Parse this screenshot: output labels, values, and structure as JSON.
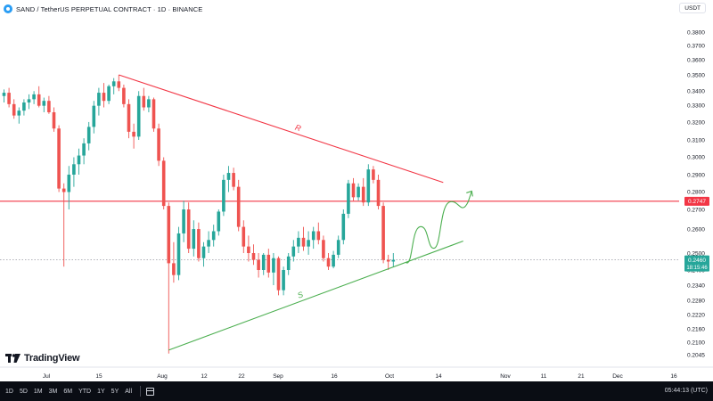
{
  "header": {
    "symbol_title": "SAND / TetherUS PERPETUAL CONTRACT · 1D · BINANCE",
    "currency": "USDT"
  },
  "price_badges": {
    "resistance_level": "0.2747",
    "current_price": "0.2460",
    "countdown": "18:15:46"
  },
  "colors": {
    "up": "#26a69a",
    "down": "#ef5350",
    "resistance": "#f23645",
    "support": "#4caf50",
    "wave": "#4caf50",
    "current_price": "#26a69a"
  },
  "annotations": {
    "resistance_label": "R",
    "support_label": "S"
  },
  "logo": {
    "text": "TradingView"
  },
  "bottom_bar": {
    "timeframes": [
      "1D",
      "5D",
      "1M",
      "3M",
      "6M",
      "YTD",
      "1Y",
      "5Y",
      "All"
    ],
    "clock": "05:44:13 (UTC)"
  },
  "chart_data": {
    "type": "candlestick",
    "title": "SAND / TetherUS PERPETUAL CONTRACT · 1D · BINANCE",
    "timeframe": "1D",
    "ylim": [
      0.2,
      0.39
    ],
    "y_ticks": [
      "0.3800",
      "0.3700",
      "0.3600",
      "0.3500",
      "0.3400",
      "0.3300",
      "0.3200",
      "0.3100",
      "0.3000",
      "0.2900",
      "0.2800",
      "0.2700",
      "0.2600",
      "0.2500",
      "0.2400",
      "0.2340",
      "0.2280",
      "0.2220",
      "0.2160",
      "0.2100",
      "0.2045"
    ],
    "x_ticks": [
      "Jul",
      "15",
      "Aug",
      "12",
      "22",
      "Sep",
      "16",
      "Oct",
      "14",
      "Nov",
      "11",
      "21",
      "Dec",
      "16"
    ],
    "horizontal_lines": [
      {
        "name": "resistance-level",
        "price": 0.2747
      },
      {
        "name": "current-price",
        "price": 0.246
      }
    ],
    "trendlines": [
      {
        "name": "R",
        "from_bar": 23,
        "from_price": 0.35,
        "to_bar": 88,
        "to_price": 0.2855
      },
      {
        "name": "S",
        "from_bar": 33,
        "from_price": 0.2065,
        "to_bar": 92,
        "to_price": 0.2555
      }
    ],
    "candles": [
      [
        0.337,
        0.341,
        0.333,
        0.339
      ],
      [
        0.339,
        0.342,
        0.33,
        0.332
      ],
      [
        0.332,
        0.335,
        0.323,
        0.325
      ],
      [
        0.325,
        0.33,
        0.32,
        0.328
      ],
      [
        0.328,
        0.335,
        0.325,
        0.333
      ],
      [
        0.333,
        0.338,
        0.329,
        0.335
      ],
      [
        0.335,
        0.34,
        0.332,
        0.338
      ],
      [
        0.338,
        0.343,
        0.33,
        0.331
      ],
      [
        0.331,
        0.336,
        0.327,
        0.334
      ],
      [
        0.334,
        0.337,
        0.326,
        0.327
      ],
      [
        0.327,
        0.33,
        0.315,
        0.317
      ],
      [
        0.317,
        0.319,
        0.28,
        0.282
      ],
      [
        0.282,
        0.285,
        0.242,
        0.28
      ],
      [
        0.28,
        0.295,
        0.27,
        0.29
      ],
      [
        0.29,
        0.3,
        0.283,
        0.296
      ],
      [
        0.296,
        0.305,
        0.29,
        0.301
      ],
      [
        0.301,
        0.311,
        0.296,
        0.308
      ],
      [
        0.308,
        0.321,
        0.304,
        0.318
      ],
      [
        0.318,
        0.334,
        0.314,
        0.331
      ],
      [
        0.331,
        0.342,
        0.325,
        0.339
      ],
      [
        0.339,
        0.345,
        0.33,
        0.334
      ],
      [
        0.334,
        0.344,
        0.332,
        0.343
      ],
      [
        0.343,
        0.348,
        0.338,
        0.346
      ],
      [
        0.346,
        0.35,
        0.34,
        0.342
      ],
      [
        0.342,
        0.344,
        0.33,
        0.332
      ],
      [
        0.332,
        0.335,
        0.311,
        0.315
      ],
      [
        0.315,
        0.32,
        0.305,
        0.312
      ],
      [
        0.312,
        0.34,
        0.31,
        0.337
      ],
      [
        0.337,
        0.342,
        0.328,
        0.33
      ],
      [
        0.33,
        0.337,
        0.327,
        0.335
      ],
      [
        0.335,
        0.336,
        0.315,
        0.317
      ],
      [
        0.317,
        0.32,
        0.295,
        0.298
      ],
      [
        0.298,
        0.3,
        0.27,
        0.272
      ],
      [
        0.272,
        0.274,
        0.205,
        0.244
      ],
      [
        0.244,
        0.255,
        0.235,
        0.238
      ],
      [
        0.238,
        0.262,
        0.236,
        0.259
      ],
      [
        0.259,
        0.275,
        0.255,
        0.27
      ],
      [
        0.27,
        0.274,
        0.25,
        0.252
      ],
      [
        0.252,
        0.265,
        0.248,
        0.261
      ],
      [
        0.261,
        0.264,
        0.245,
        0.247
      ],
      [
        0.247,
        0.255,
        0.242,
        0.253
      ],
      [
        0.253,
        0.26,
        0.25,
        0.256
      ],
      [
        0.256,
        0.263,
        0.253,
        0.26
      ],
      [
        0.26,
        0.27,
        0.258,
        0.269
      ],
      [
        0.269,
        0.29,
        0.267,
        0.287
      ],
      [
        0.287,
        0.295,
        0.28,
        0.291
      ],
      [
        0.291,
        0.294,
        0.281,
        0.283
      ],
      [
        0.283,
        0.287,
        0.26,
        0.262
      ],
      [
        0.262,
        0.265,
        0.25,
        0.253
      ],
      [
        0.253,
        0.258,
        0.245,
        0.25
      ],
      [
        0.25,
        0.254,
        0.243,
        0.246
      ],
      [
        0.246,
        0.25,
        0.237,
        0.24
      ],
      [
        0.24,
        0.25,
        0.238,
        0.249
      ],
      [
        0.249,
        0.252,
        0.237,
        0.239
      ],
      [
        0.239,
        0.25,
        0.234,
        0.247
      ],
      [
        0.247,
        0.248,
        0.23,
        0.232
      ],
      [
        0.232,
        0.242,
        0.23,
        0.24
      ],
      [
        0.24,
        0.25,
        0.238,
        0.248
      ],
      [
        0.248,
        0.256,
        0.245,
        0.253
      ],
      [
        0.253,
        0.26,
        0.25,
        0.257
      ],
      [
        0.257,
        0.262,
        0.251,
        0.253
      ],
      [
        0.253,
        0.26,
        0.249,
        0.256
      ],
      [
        0.256,
        0.262,
        0.252,
        0.26
      ],
      [
        0.26,
        0.264,
        0.254,
        0.256
      ],
      [
        0.256,
        0.258,
        0.245,
        0.247
      ],
      [
        0.247,
        0.25,
        0.24,
        0.242
      ],
      [
        0.242,
        0.251,
        0.241,
        0.249
      ],
      [
        0.249,
        0.258,
        0.247,
        0.256
      ],
      [
        0.256,
        0.27,
        0.254,
        0.268
      ],
      [
        0.268,
        0.287,
        0.266,
        0.285
      ],
      [
        0.285,
        0.288,
        0.275,
        0.277
      ],
      [
        0.277,
        0.285,
        0.275,
        0.283
      ],
      [
        0.283,
        0.288,
        0.272,
        0.274
      ],
      [
        0.274,
        0.296,
        0.272,
        0.293
      ],
      [
        0.293,
        0.295,
        0.285,
        0.287
      ],
      [
        0.287,
        0.29,
        0.27,
        0.272
      ],
      [
        0.272,
        0.274,
        0.244,
        0.246
      ],
      [
        0.246,
        0.249,
        0.24,
        0.245
      ],
      [
        0.245,
        0.25,
        0.242,
        0.246
      ]
    ]
  }
}
